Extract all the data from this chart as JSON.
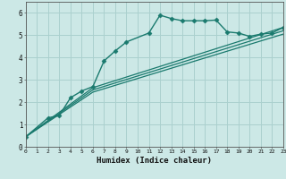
{
  "xlabel": "Humidex (Indice chaleur)",
  "background_color": "#cce8e6",
  "grid_color": "#aad0ce",
  "line_color": "#1a7a6e",
  "xlim": [
    0,
    23
  ],
  "ylim": [
    0,
    6.5
  ],
  "xticks": [
    0,
    1,
    2,
    3,
    4,
    5,
    6,
    7,
    8,
    9,
    10,
    11,
    12,
    13,
    14,
    15,
    16,
    17,
    18,
    19,
    20,
    21,
    22,
    23
  ],
  "yticks": [
    0,
    1,
    2,
    3,
    4,
    5,
    6
  ],
  "series": [
    {
      "x": [
        0,
        2,
        3,
        4,
        5,
        6,
        7,
        8,
        9,
        11,
        12,
        13,
        14,
        15,
        16,
        17,
        18,
        19,
        20,
        21,
        22,
        23
      ],
      "y": [
        0.45,
        1.3,
        1.4,
        2.2,
        2.5,
        2.7,
        3.85,
        4.3,
        4.7,
        5.1,
        5.9,
        5.75,
        5.65,
        5.65,
        5.65,
        5.68,
        5.15,
        5.1,
        4.95,
        5.05,
        5.1,
        5.35
      ],
      "marker": "D",
      "markersize": 2.5,
      "linewidth": 1.0
    },
    {
      "x": [
        0,
        6,
        23
      ],
      "y": [
        0.45,
        2.65,
        5.35
      ],
      "marker": null,
      "linewidth": 0.9
    },
    {
      "x": [
        0,
        6,
        23
      ],
      "y": [
        0.45,
        2.55,
        5.2
      ],
      "marker": null,
      "linewidth": 0.9
    },
    {
      "x": [
        0,
        6,
        23
      ],
      "y": [
        0.45,
        2.45,
        5.05
      ],
      "marker": null,
      "linewidth": 0.9
    }
  ]
}
